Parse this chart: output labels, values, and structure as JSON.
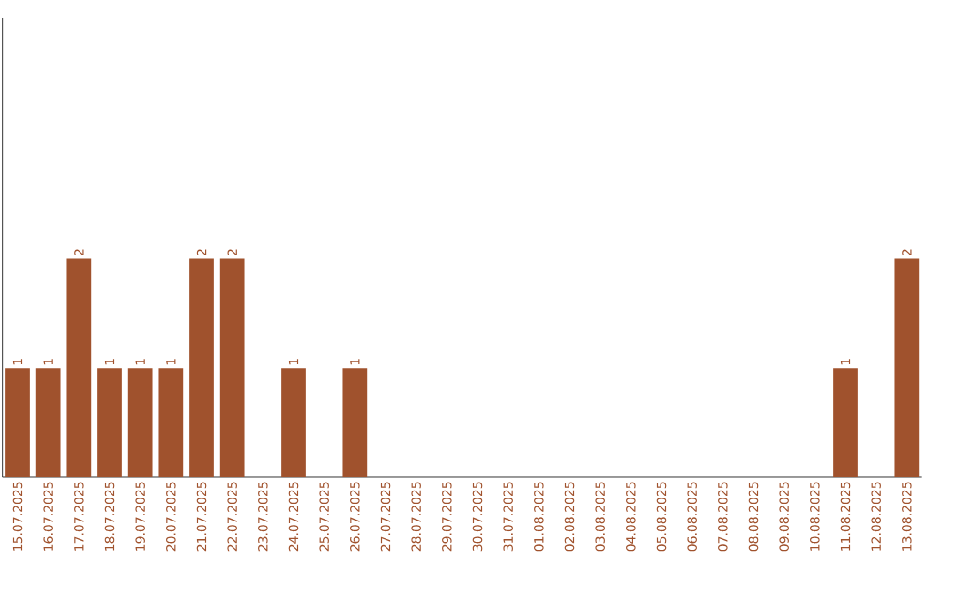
{
  "chart_data": {
    "type": "bar",
    "categories": [
      "15.07.2025",
      "16.07.2025",
      "17.07.2025",
      "18.07.2025",
      "19.07.2025",
      "20.07.2025",
      "21.07.2025",
      "22.07.2025",
      "23.07.2025",
      "24.07.2025",
      "25.07.2025",
      "26.07.2025",
      "27.07.2025",
      "28.07.2025",
      "29.07.2025",
      "30.07.2025",
      "31.07.2025",
      "01.08.2025",
      "02.08.2025",
      "03.08.2025",
      "04.08.2025",
      "05.08.2025",
      "06.08.2025",
      "07.08.2025",
      "08.08.2025",
      "09.08.2025",
      "10.08.2025",
      "11.08.2025",
      "12.08.2025",
      "13.08.2025"
    ],
    "values": [
      1,
      1,
      2,
      1,
      1,
      1,
      2,
      2,
      0,
      1,
      0,
      1,
      0,
      0,
      0,
      0,
      0,
      0,
      0,
      0,
      0,
      0,
      0,
      0,
      0,
      0,
      0,
      1,
      0,
      2
    ],
    "value_labels": [
      "1",
      "1",
      "2",
      "1",
      "1",
      "1",
      "2",
      "2",
      null,
      "1",
      null,
      "1",
      null,
      null,
      null,
      null,
      null,
      null,
      null,
      null,
      null,
      null,
      null,
      null,
      null,
      null,
      null,
      "1",
      null,
      "2"
    ],
    "color": "#a0522d",
    "ylim": [
      0,
      4.2
    ]
  }
}
